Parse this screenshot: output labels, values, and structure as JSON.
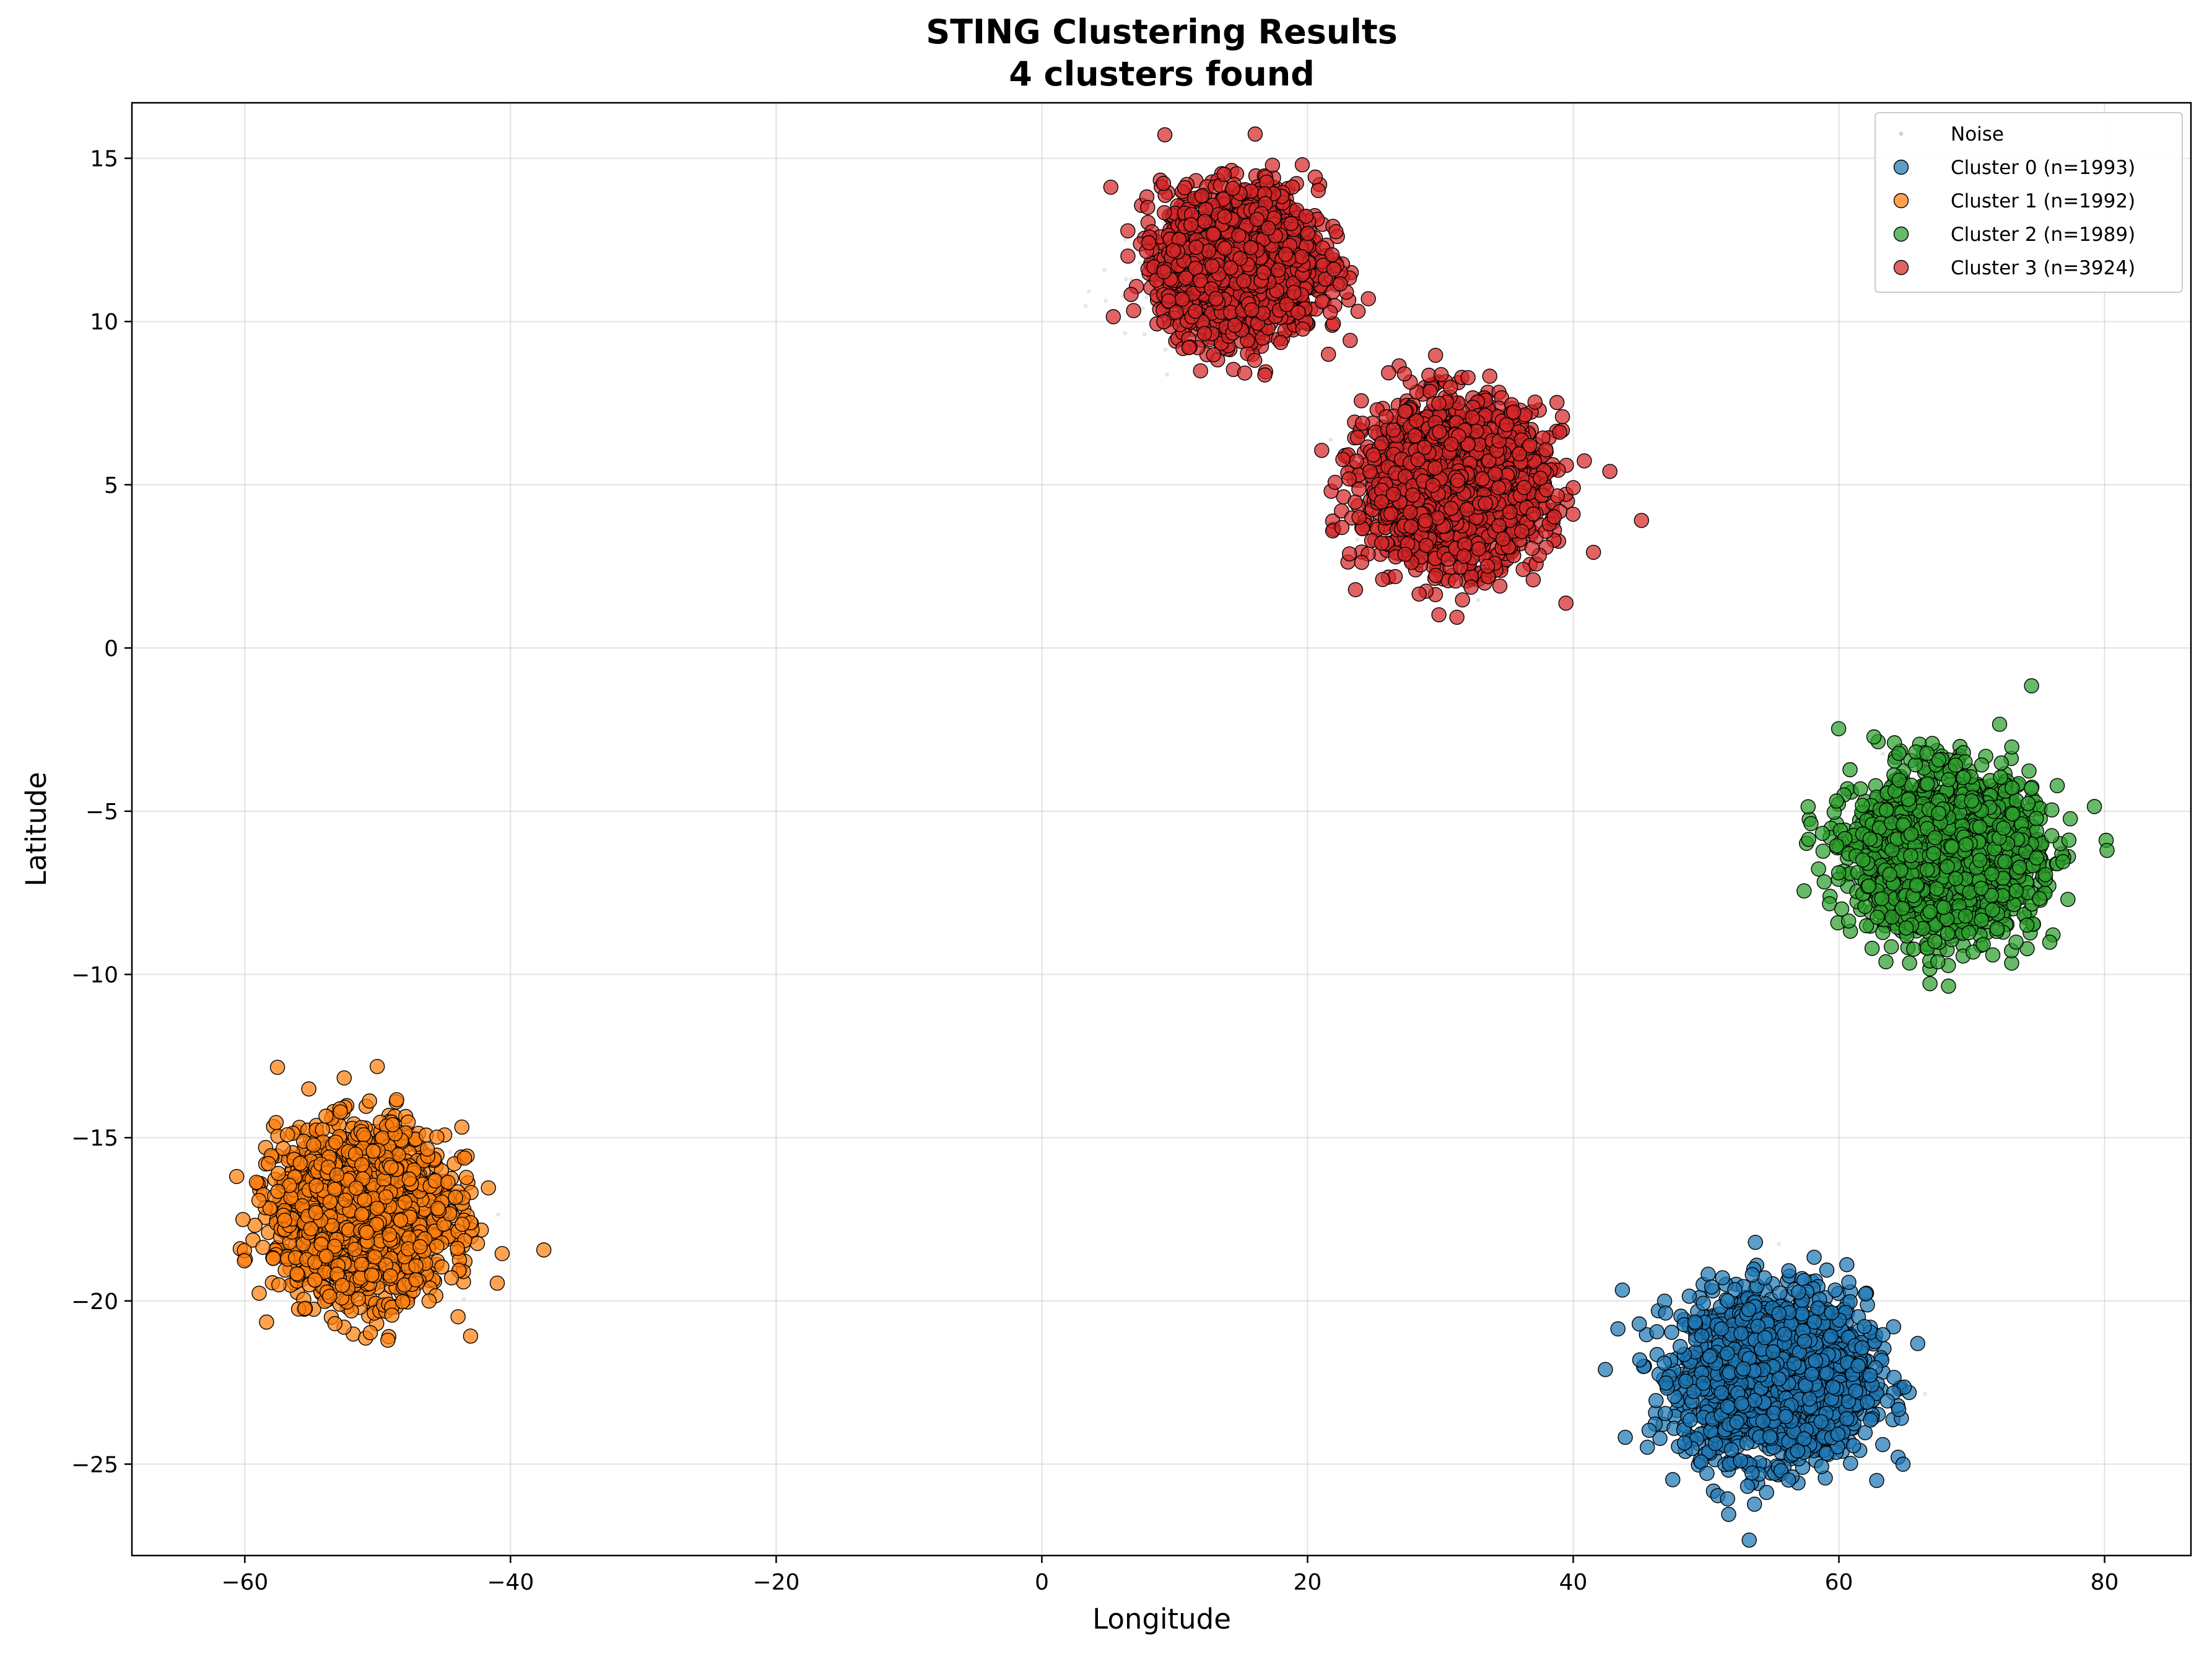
{
  "chart_data": {
    "type": "scatter",
    "title": "STING Clustering Results",
    "subtitle": "4 clusters found",
    "xlabel": "Longitude",
    "ylabel": "Latitude",
    "xlim": [
      -68.5,
      86.5
    ],
    "ylim": [
      -27.8,
      16.7
    ],
    "xticks": [
      -60,
      -40,
      -20,
      0,
      20,
      40,
      60,
      80
    ],
    "yticks": [
      -25,
      -20,
      -15,
      -10,
      -5,
      0,
      5,
      10,
      15
    ],
    "xtick_labels": [
      "−60",
      "−40",
      "−20",
      "0",
      "20",
      "40",
      "60",
      "80"
    ],
    "ytick_labels": [
      "−25",
      "−20",
      "−15",
      "−10",
      "−5",
      "0",
      "5",
      "10",
      "15"
    ],
    "grid": true,
    "legend_position": "top-right",
    "series": [
      {
        "name": "Noise",
        "color": "#d3d3d3",
        "marker": "small-dot",
        "count": 102,
        "blobs": [
          {
            "cx": 10.5,
            "cy": 11.0,
            "sx": 3.5,
            "sy": 1.0,
            "n": 40
          },
          {
            "cx": 30.0,
            "cy": 4.5,
            "sx": 4.0,
            "sy": 1.5,
            "n": 20
          },
          {
            "cx": -48.0,
            "cy": -18.0,
            "sx": 4.0,
            "sy": 2.0,
            "n": 12
          },
          {
            "cx": 58.0,
            "cy": -22.0,
            "sx": 4.0,
            "sy": 1.5,
            "n": 15
          },
          {
            "cx": 68.0,
            "cy": -6.5,
            "sx": 4.0,
            "sy": 1.5,
            "n": 15
          }
        ]
      },
      {
        "name": "Cluster 0 (n=1993)",
        "color": "#1f77b4",
        "count": 1993,
        "blobs": [
          {
            "cx": 55.2,
            "cy": -22.3,
            "sx": 3.4,
            "sy": 1.25,
            "n": 1993
          }
        ]
      },
      {
        "name": "Cluster 1 (n=1992)",
        "color": "#ff7f0e",
        "count": 1992,
        "blobs": [
          {
            "cx": -51.2,
            "cy": -17.3,
            "sx": 3.2,
            "sy": 1.25,
            "n": 1992
          }
        ]
      },
      {
        "name": "Cluster 2 (n=1989)",
        "color": "#2ca02c",
        "count": 1989,
        "blobs": [
          {
            "cx": 68.0,
            "cy": -6.3,
            "sx": 3.4,
            "sy": 1.2,
            "n": 1989
          }
        ]
      },
      {
        "name": "Cluster 3 (n=3924)",
        "color": "#d62728",
        "count": 3924,
        "blobs": [
          {
            "cx": 15.0,
            "cy": 11.8,
            "sx": 2.9,
            "sy": 1.1,
            "n": 1962
          },
          {
            "cx": 31.0,
            "cy": 5.0,
            "sx": 3.3,
            "sy": 1.2,
            "n": 1962
          }
        ]
      }
    ]
  }
}
